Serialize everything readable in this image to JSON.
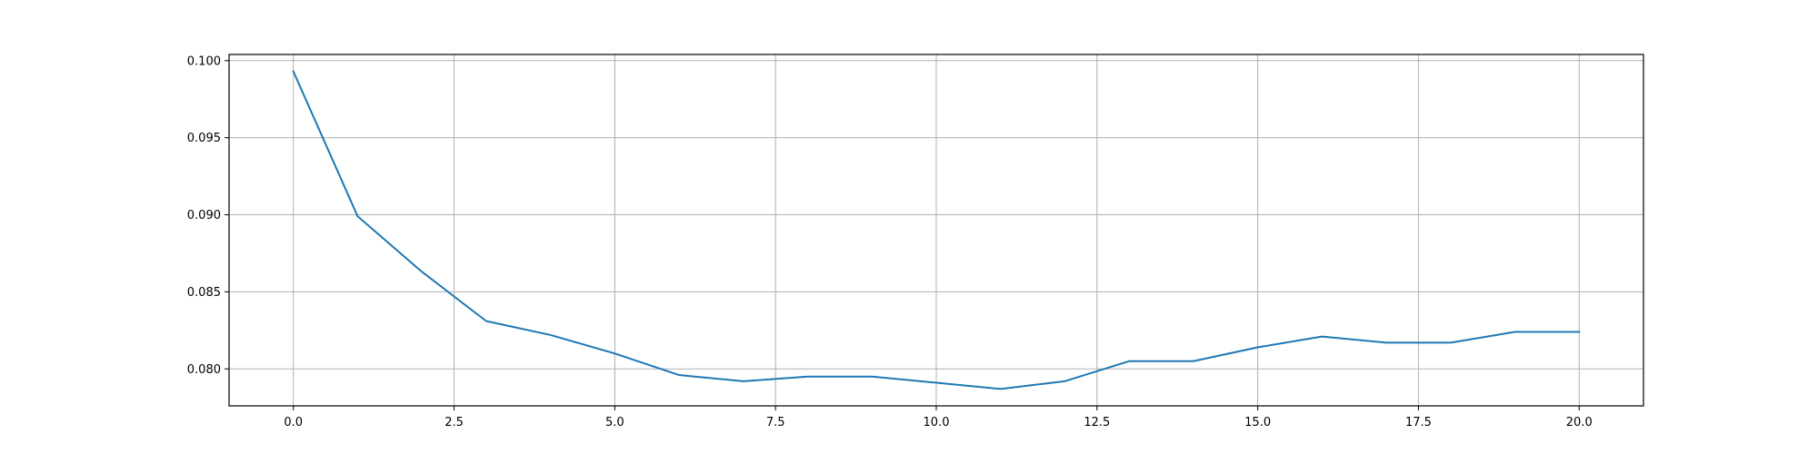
{
  "chart_data": {
    "type": "line",
    "title": "",
    "xlabel": "",
    "ylabel": "",
    "xlim": [
      -1.0,
      21.0
    ],
    "ylim": [
      0.0776,
      0.1004
    ],
    "grid": true,
    "xticks": [
      0.0,
      2.5,
      5.0,
      7.5,
      10.0,
      12.5,
      15.0,
      17.5,
      20.0
    ],
    "xtick_labels": [
      "0.0",
      "2.5",
      "5.0",
      "7.5",
      "10.0",
      "12.5",
      "15.0",
      "17.5",
      "20.0"
    ],
    "yticks": [
      0.08,
      0.085,
      0.09,
      0.095,
      0.1
    ],
    "ytick_labels": [
      "0.080",
      "0.085",
      "0.090",
      "0.095",
      "0.100"
    ],
    "series": [
      {
        "color": "#1f77b4",
        "x": [
          0,
          1,
          2,
          3,
          4,
          5,
          6,
          7,
          8,
          9,
          10,
          11,
          12,
          13,
          14,
          15,
          16,
          17,
          18,
          19,
          20
        ],
        "y": [
          0.0993,
          0.0899,
          0.0863,
          0.0831,
          0.0822,
          0.081,
          0.0796,
          0.0792,
          0.0795,
          0.0795,
          0.0791,
          0.0787,
          0.0792,
          0.0805,
          0.0805,
          0.0814,
          0.0821,
          0.0817,
          0.0817,
          0.0824,
          0.0824
        ]
      }
    ]
  }
}
